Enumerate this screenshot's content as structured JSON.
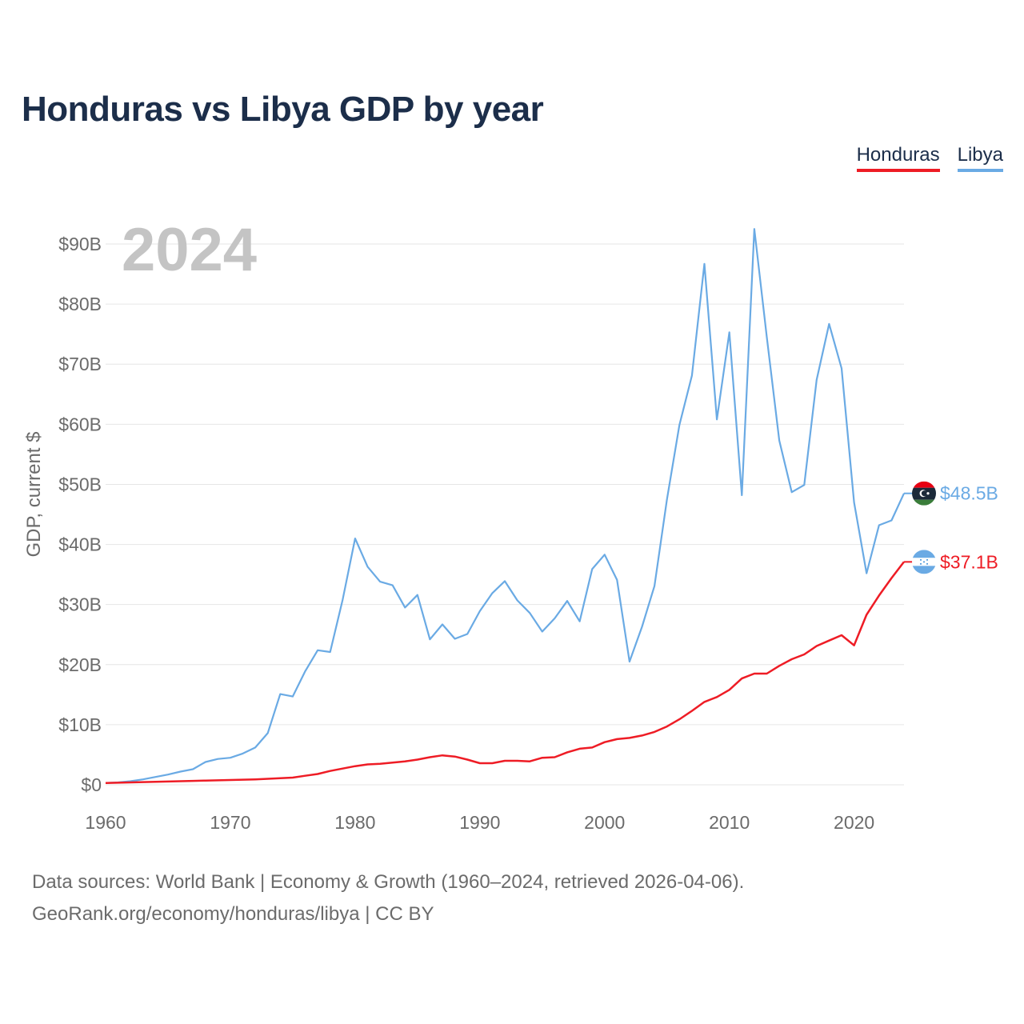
{
  "title": "Honduras vs Libya GDP by year",
  "legend": [
    {
      "label": "Honduras",
      "color": "#ee1c25"
    },
    {
      "label": "Libya",
      "color": "#6aaae4"
    }
  ],
  "source": {
    "line1": "Data sources: World Bank | Economy & Growth (1960–2024, retrieved 2026-04-06).",
    "line2": "GeoRank.org/economy/honduras/libya | CC BY"
  },
  "chart_data": {
    "type": "line",
    "title": "Honduras vs Libya GDP by year",
    "year_label": "2024",
    "xlabel": "",
    "ylabel": "GDP, current $",
    "xlim": [
      1960,
      2024
    ],
    "ylim": [
      0,
      93
    ],
    "x_ticks": [
      1960,
      1970,
      1980,
      1990,
      2000,
      2010,
      2020
    ],
    "y_ticks": [
      {
        "value": 0,
        "label": "$0"
      },
      {
        "value": 10,
        "label": "$10B"
      },
      {
        "value": 20,
        "label": "$20B"
      },
      {
        "value": 30,
        "label": "$30B"
      },
      {
        "value": 40,
        "label": "$40B"
      },
      {
        "value": 50,
        "label": "$50B"
      },
      {
        "value": 60,
        "label": "$60B"
      },
      {
        "value": 70,
        "label": "$70B"
      },
      {
        "value": 80,
        "label": "$80B"
      },
      {
        "value": 90,
        "label": "$90B"
      }
    ],
    "grid": true,
    "legend_position": "top-right",
    "x": [
      1960,
      1961,
      1962,
      1963,
      1964,
      1965,
      1966,
      1967,
      1968,
      1969,
      1970,
      1971,
      1972,
      1973,
      1974,
      1975,
      1976,
      1977,
      1978,
      1979,
      1980,
      1981,
      1982,
      1983,
      1984,
      1985,
      1986,
      1987,
      1988,
      1989,
      1990,
      1991,
      1992,
      1993,
      1994,
      1995,
      1996,
      1997,
      1998,
      1999,
      2000,
      2001,
      2002,
      2003,
      2004,
      2005,
      2006,
      2007,
      2008,
      2009,
      2010,
      2011,
      2012,
      2013,
      2014,
      2015,
      2016,
      2017,
      2018,
      2019,
      2020,
      2021,
      2022,
      2023,
      2024
    ],
    "series": [
      {
        "name": "Libya",
        "color": "#6aaae4",
        "end_label": "$48.5B",
        "flag": "libya-flag-icon",
        "values": [
          0.3,
          0.4,
          0.6,
          0.9,
          1.3,
          1.7,
          2.2,
          2.6,
          3.8,
          4.3,
          4.5,
          5.2,
          6.2,
          8.6,
          15.1,
          14.7,
          18.9,
          22.4,
          22.1,
          30.8,
          41.0,
          36.3,
          33.8,
          33.2,
          29.5,
          31.6,
          24.2,
          26.7,
          24.3,
          25.1,
          28.9,
          31.9,
          33.9,
          30.7,
          28.6,
          25.5,
          27.7,
          30.6,
          27.2,
          35.9,
          38.3,
          34.1,
          20.5,
          26.3,
          33.1,
          47.5,
          59.9,
          68.1,
          86.7,
          60.8,
          75.3,
          48.2,
          92.5,
          74.5,
          57.3,
          48.7,
          49.9,
          67.4,
          76.7,
          69.3,
          47.0,
          35.2,
          43.2,
          44.0,
          48.5
        ]
      },
      {
        "name": "Honduras",
        "color": "#ee1c25",
        "end_label": "$37.1B",
        "flag": "honduras-flag-icon",
        "values": [
          0.3,
          0.35,
          0.4,
          0.45,
          0.5,
          0.55,
          0.6,
          0.65,
          0.7,
          0.75,
          0.8,
          0.85,
          0.9,
          1.0,
          1.1,
          1.2,
          1.5,
          1.8,
          2.3,
          2.7,
          3.1,
          3.4,
          3.5,
          3.7,
          3.9,
          4.2,
          4.6,
          4.9,
          4.7,
          4.2,
          3.6,
          3.6,
          4.0,
          4.0,
          3.9,
          4.5,
          4.6,
          5.4,
          6.0,
          6.2,
          7.1,
          7.6,
          7.8,
          8.2,
          8.8,
          9.7,
          10.9,
          12.3,
          13.8,
          14.6,
          15.8,
          17.7,
          18.5,
          18.5,
          19.8,
          20.9,
          21.7,
          23.1,
          24.0,
          24.9,
          23.2,
          28.3,
          31.5,
          34.4,
          37.1
        ]
      }
    ]
  }
}
